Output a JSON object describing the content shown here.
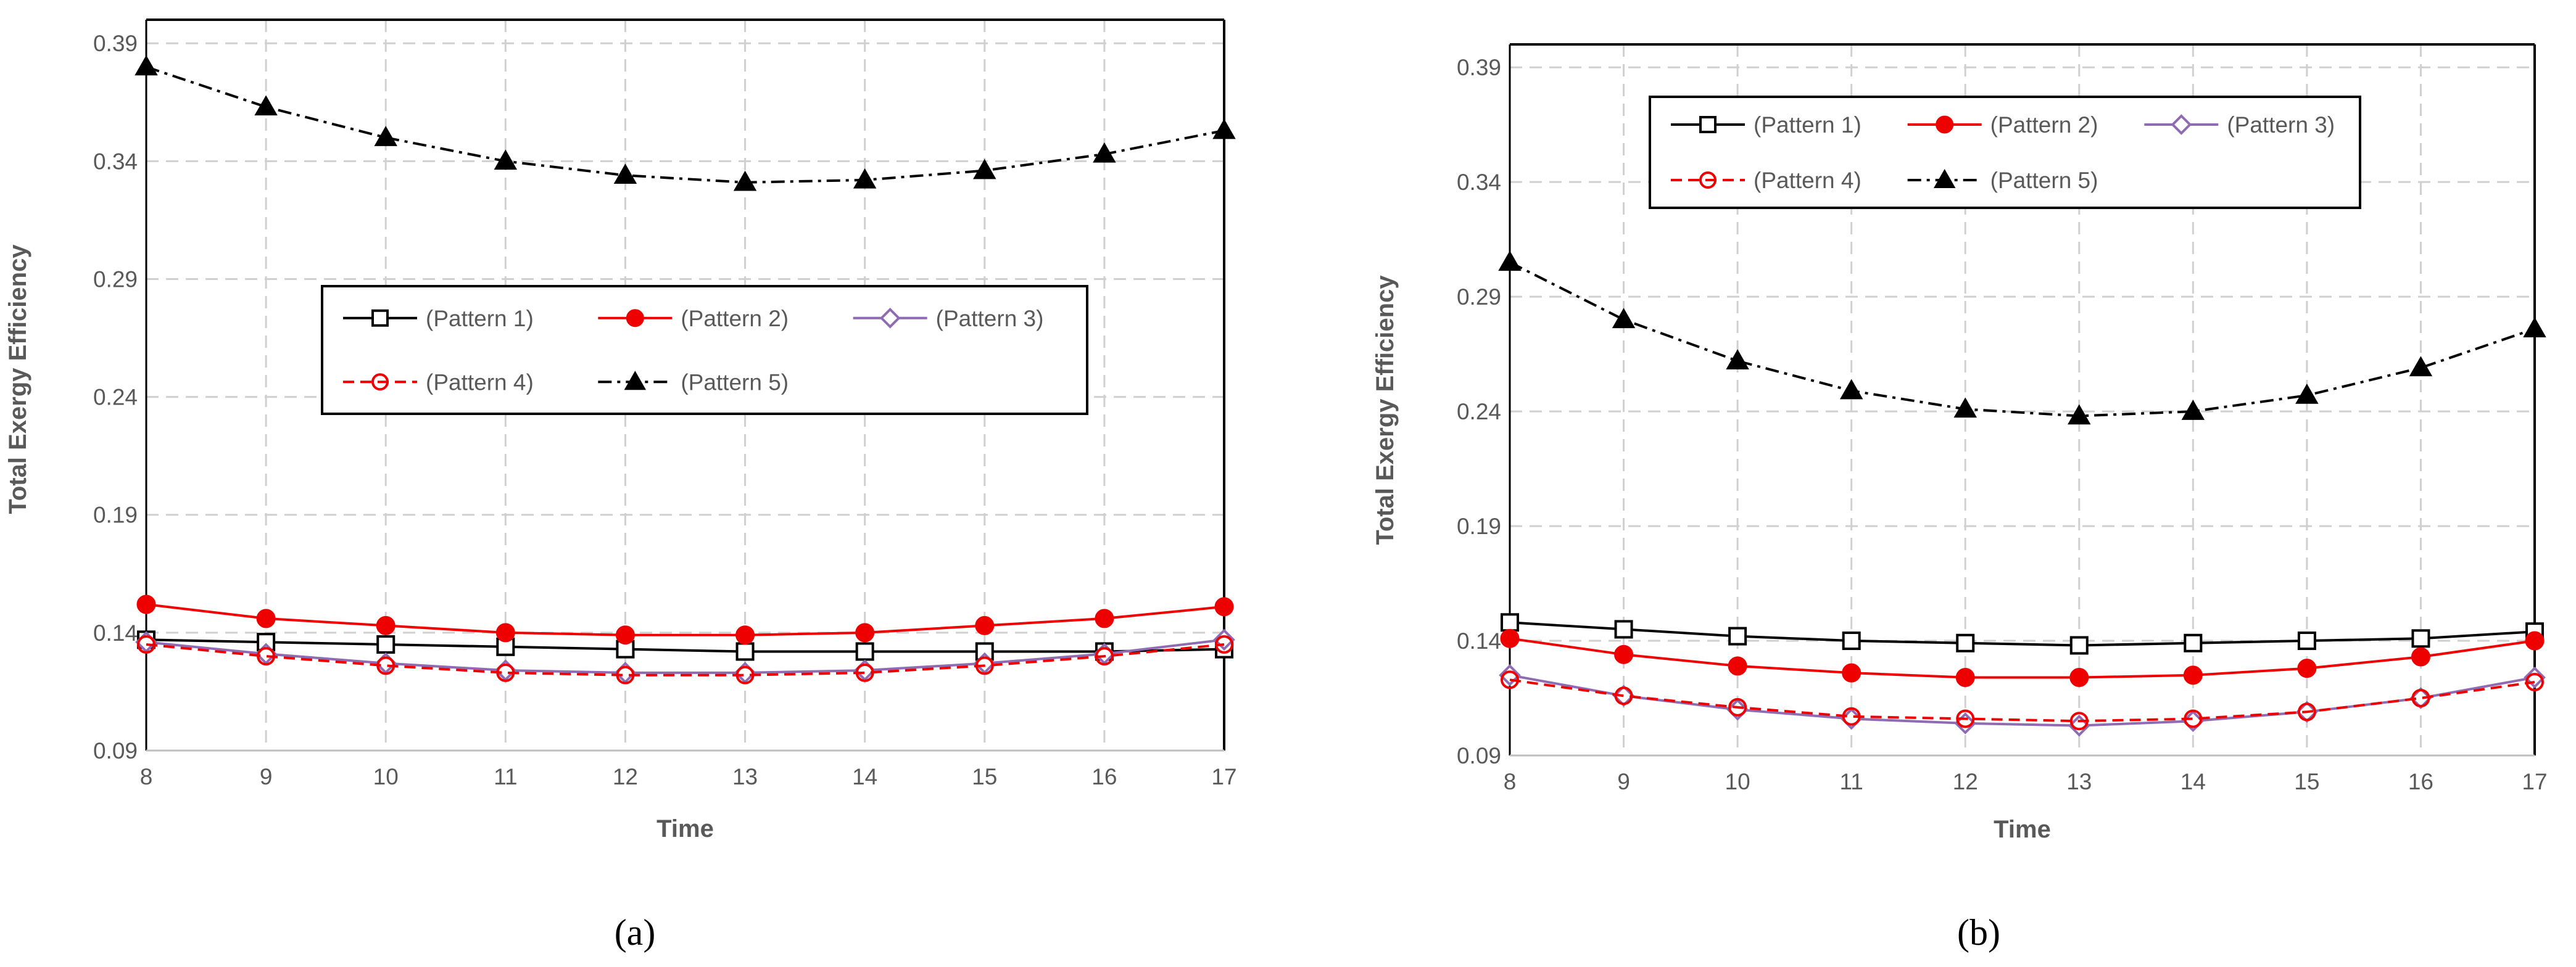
{
  "chart_data": [
    {
      "type": "line",
      "panel_label": "(a)",
      "panel_letter": "a",
      "xlabel": "Time",
      "ylabel": "Total Exergy Efficiency",
      "x": [
        8,
        9,
        10,
        11,
        12,
        13,
        14,
        15,
        16,
        17
      ],
      "x_tick_labels": [
        "8",
        "9",
        "10",
        "11",
        "12",
        "13",
        "14",
        "15",
        "16",
        "17"
      ],
      "ylim": [
        0.09,
        0.4
      ],
      "y_ticks": [
        0.09,
        0.14,
        0.19,
        0.24,
        0.29,
        0.34,
        0.39
      ],
      "y_tick_labels": [
        "0.09",
        "0.14",
        "0.19",
        "0.24",
        "0.29",
        "0.34",
        "0.39"
      ],
      "grid": true,
      "legend_position": "center",
      "series": [
        {
          "name": "(Pattern 1)",
          "color": "#000000",
          "marker": "square-open",
          "line": "solid",
          "values": [
            0.137,
            0.136,
            0.135,
            0.134,
            0.133,
            0.132,
            0.132,
            0.132,
            0.132,
            0.133
          ]
        },
        {
          "name": "(Pattern 2)",
          "color": "#ee0000",
          "marker": "circle-filled",
          "line": "solid",
          "values": [
            0.152,
            0.146,
            0.143,
            0.14,
            0.139,
            0.139,
            0.14,
            0.143,
            0.146,
            0.151
          ]
        },
        {
          "name": "(Pattern 3)",
          "color": "#8e6bb3",
          "marker": "diamond-open",
          "line": "solid",
          "values": [
            0.136,
            0.131,
            0.127,
            0.124,
            0.123,
            0.123,
            0.124,
            0.127,
            0.131,
            0.137
          ]
        },
        {
          "name": "(Pattern 4)",
          "color": "#ee0000",
          "marker": "circle-open",
          "line": "dashed",
          "values": [
            0.135,
            0.13,
            0.126,
            0.123,
            0.122,
            0.122,
            0.123,
            0.126,
            0.13,
            0.135
          ]
        },
        {
          "name": "(Pattern 5)",
          "color": "#000000",
          "marker": "triangle-filled",
          "line": "dashdot",
          "values": [
            0.38,
            0.363,
            0.35,
            0.34,
            0.334,
            0.331,
            0.332,
            0.336,
            0.343,
            0.353
          ]
        }
      ]
    },
    {
      "type": "line",
      "panel_label": "(b)",
      "panel_letter": "b",
      "xlabel": "Time",
      "ylabel": "Total  Exergy Efficiency",
      "x": [
        8,
        9,
        10,
        11,
        12,
        13,
        14,
        15,
        16,
        17
      ],
      "x_tick_labels": [
        "8",
        "9",
        "10",
        "11",
        "12",
        "13",
        "14",
        "15",
        "16",
        "17"
      ],
      "ylim": [
        0.09,
        0.4
      ],
      "y_ticks": [
        0.09,
        0.14,
        0.19,
        0.24,
        0.29,
        0.34,
        0.39
      ],
      "y_tick_labels": [
        "0.09",
        "0.14",
        "0.19",
        "0.24",
        "0.29",
        "0.34",
        "0.39"
      ],
      "grid": true,
      "legend_position": "top-center",
      "series": [
        {
          "name": "(Pattern 1)",
          "color": "#000000",
          "marker": "square-open",
          "line": "solid",
          "values": [
            0.148,
            0.145,
            0.142,
            0.14,
            0.139,
            0.138,
            0.139,
            0.14,
            0.141,
            0.144
          ]
        },
        {
          "name": "(Pattern 2)",
          "color": "#ee0000",
          "marker": "circle-filled",
          "line": "solid",
          "values": [
            0.141,
            0.134,
            0.129,
            0.126,
            0.124,
            0.124,
            0.125,
            0.128,
            0.133,
            0.14
          ]
        },
        {
          "name": "(Pattern 3)",
          "color": "#8e6bb3",
          "marker": "diamond-open",
          "line": "solid",
          "values": [
            0.125,
            0.116,
            0.11,
            0.106,
            0.104,
            0.103,
            0.105,
            0.109,
            0.115,
            0.124
          ]
        },
        {
          "name": "(Pattern 4)",
          "color": "#ee0000",
          "marker": "circle-open",
          "line": "dashed",
          "values": [
            0.123,
            0.116,
            0.111,
            0.107,
            0.106,
            0.105,
            0.106,
            0.109,
            0.115,
            0.122
          ]
        },
        {
          "name": "(Pattern 5)",
          "color": "#000000",
          "marker": "triangle-filled",
          "line": "dashdot",
          "values": [
            0.305,
            0.28,
            0.262,
            0.249,
            0.241,
            0.238,
            0.24,
            0.247,
            0.259,
            0.276
          ]
        }
      ]
    }
  ]
}
